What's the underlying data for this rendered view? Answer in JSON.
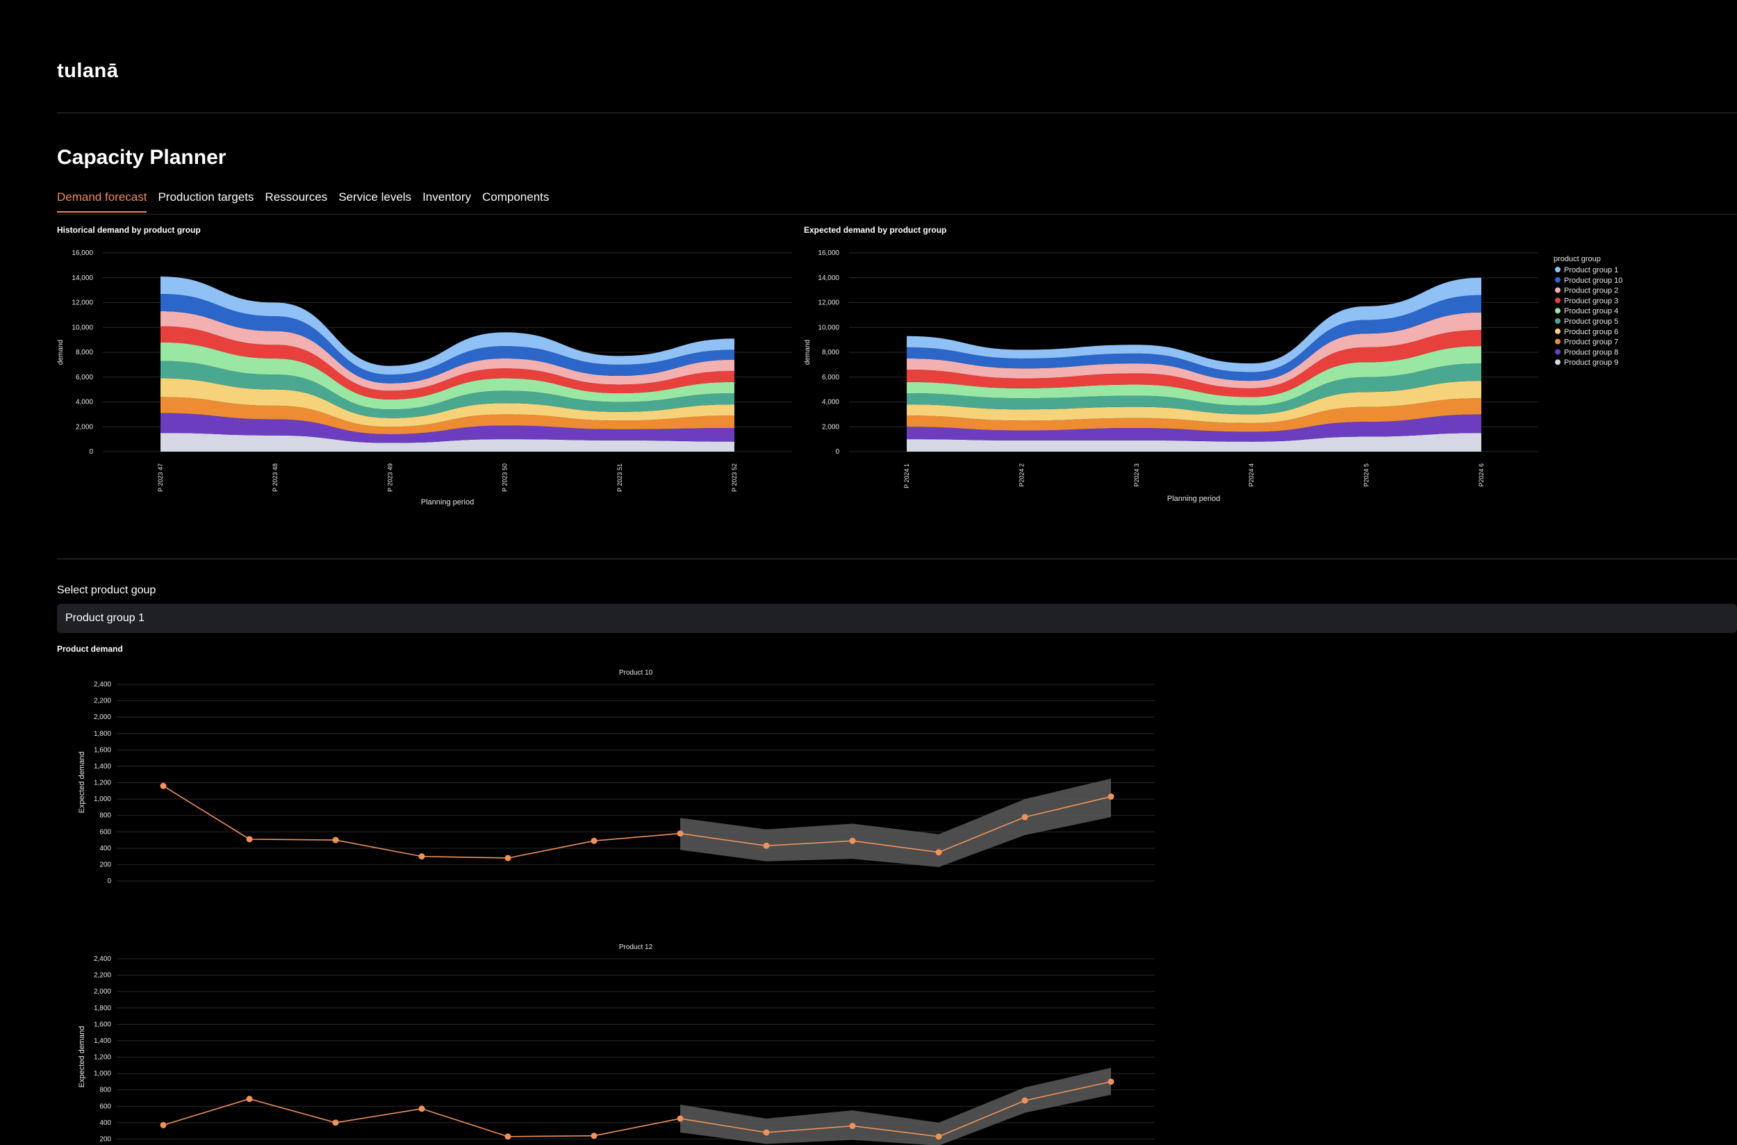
{
  "app": {
    "logo": "tulanā"
  },
  "page": {
    "title": "Capacity Planner"
  },
  "tabs": [
    {
      "label": "Demand forecast",
      "active": true
    },
    {
      "label": "Production targets",
      "active": false
    },
    {
      "label": "Ressources",
      "active": false
    },
    {
      "label": "Service levels",
      "active": false
    },
    {
      "label": "Inventory",
      "active": false
    },
    {
      "label": "Components",
      "active": false
    }
  ],
  "sections": {
    "historical_title": "Historical demand by product group",
    "expected_title": "Expected demand by product group",
    "select_label": "Select product goup",
    "selected_group": "Product group 1",
    "product_demand_title": "Product demand"
  },
  "legend": {
    "title": "product group",
    "items": [
      {
        "label": "Product group 1",
        "color": "#8fc1f7"
      },
      {
        "label": "Product group 10",
        "color": "#2c66c9"
      },
      {
        "label": "Product group 2",
        "color": "#f3b0b0"
      },
      {
        "label": "Product group 3",
        "color": "#e8403c"
      },
      {
        "label": "Product group 4",
        "color": "#9ae6a3"
      },
      {
        "label": "Product group 5",
        "color": "#4aa890"
      },
      {
        "label": "Product group 6",
        "color": "#f6d37a"
      },
      {
        "label": "Product group 7",
        "color": "#ee8c34"
      },
      {
        "label": "Product group 8",
        "color": "#6c3ebf"
      },
      {
        "label": "Product group 9",
        "color": "#d6d8e6"
      }
    ]
  },
  "chart_data": [
    {
      "type": "area",
      "title": "",
      "xlabel": "Planning period",
      "ylabel": "demand",
      "ylim": [
        0,
        16000
      ],
      "yticks": [
        0,
        2000,
        4000,
        6000,
        8000,
        10000,
        12000,
        14000,
        16000
      ],
      "categories": [
        "P 2023 47",
        "P 2023 48",
        "P 2023 49",
        "P 2023 50",
        "P 2023 51",
        "P 2023 52"
      ],
      "series": [
        {
          "name": "Product group 9",
          "values": [
            1500,
            1300,
            700,
            1000,
            900,
            800
          ]
        },
        {
          "name": "Product group 8",
          "values": [
            1600,
            1300,
            700,
            1100,
            900,
            1100
          ]
        },
        {
          "name": "Product group 7",
          "values": [
            1300,
            1100,
            600,
            900,
            700,
            1000
          ]
        },
        {
          "name": "Product group 6",
          "values": [
            1500,
            1300,
            700,
            900,
            700,
            900
          ]
        },
        {
          "name": "Product group 5",
          "values": [
            1400,
            1200,
            700,
            1000,
            800,
            900
          ]
        },
        {
          "name": "Product group 4",
          "values": [
            1500,
            1300,
            800,
            1000,
            700,
            900
          ]
        },
        {
          "name": "Product group 3",
          "values": [
            1300,
            1100,
            700,
            800,
            700,
            900
          ]
        },
        {
          "name": "Product group 2",
          "values": [
            1200,
            1100,
            600,
            800,
            700,
            900
          ]
        },
        {
          "name": "Product group 10",
          "values": [
            1400,
            1200,
            700,
            1000,
            900,
            800
          ]
        },
        {
          "name": "Product group 1",
          "values": [
            1400,
            1100,
            700,
            1100,
            700,
            900
          ]
        }
      ]
    },
    {
      "type": "area",
      "title": "",
      "xlabel": "Planning period",
      "ylabel": "demand",
      "ylim": [
        0,
        16000
      ],
      "yticks": [
        0,
        2000,
        4000,
        6000,
        8000,
        10000,
        12000,
        14000,
        16000
      ],
      "categories": [
        "P 2024 1",
        "P2024 2",
        "P2024 3",
        "P2024 4",
        "P2024 5",
        "P2024 6"
      ],
      "series": [
        {
          "name": "Product group 9",
          "values": [
            1000,
            900,
            900,
            800,
            1200,
            1500
          ]
        },
        {
          "name": "Product group 8",
          "values": [
            1000,
            800,
            1000,
            800,
            1200,
            1500
          ]
        },
        {
          "name": "Product group 7",
          "values": [
            900,
            800,
            800,
            700,
            1200,
            1300
          ]
        },
        {
          "name": "Product group 6",
          "values": [
            900,
            900,
            900,
            700,
            1200,
            1400
          ]
        },
        {
          "name": "Product group 5",
          "values": [
            900,
            900,
            900,
            700,
            1200,
            1400
          ]
        },
        {
          "name": "Product group 4",
          "values": [
            900,
            800,
            900,
            700,
            1200,
            1400
          ]
        },
        {
          "name": "Product group 3",
          "values": [
            1000,
            800,
            900,
            700,
            1200,
            1300
          ]
        },
        {
          "name": "Product group 2",
          "values": [
            900,
            800,
            800,
            600,
            1100,
            1400
          ]
        },
        {
          "name": "Product group 10",
          "values": [
            900,
            800,
            800,
            700,
            1100,
            1400
          ]
        },
        {
          "name": "Product group 1",
          "values": [
            900,
            700,
            700,
            700,
            1100,
            1400
          ]
        }
      ]
    },
    {
      "type": "line",
      "title": "Product 10",
      "xlabel": "",
      "ylabel": "Expected demand",
      "ylim": [
        0,
        2400
      ],
      "yticks": [
        0,
        200,
        400,
        600,
        800,
        1000,
        1200,
        1400,
        1600,
        1800,
        2000,
        2200,
        2400
      ],
      "x": [
        0,
        1,
        2,
        3,
        4,
        5,
        6,
        7,
        8,
        9,
        10,
        11
      ],
      "values": [
        1160,
        510,
        500,
        300,
        280,
        490,
        580,
        430,
        490,
        350,
        780,
        1030
      ],
      "band": {
        "x": [
          6,
          7,
          8,
          9,
          10,
          11
        ],
        "lower": [
          380,
          240,
          270,
          170,
          560,
          780
        ],
        "upper": [
          770,
          630,
          700,
          570,
          1000,
          1250
        ]
      }
    },
    {
      "type": "line",
      "title": "Product 12",
      "xlabel": "",
      "ylabel": "Expected demand",
      "ylim": [
        0,
        2400
      ],
      "yticks": [
        200,
        400,
        600,
        800,
        1000,
        1200,
        1400,
        1600,
        1800,
        2000,
        2200,
        2400
      ],
      "x": [
        0,
        1,
        2,
        3,
        4,
        5,
        6,
        7,
        8,
        9,
        10,
        11
      ],
      "values": [
        370,
        690,
        400,
        570,
        230,
        240,
        450,
        280,
        360,
        230,
        670,
        900
      ],
      "band": {
        "x": [
          6,
          7,
          8,
          9,
          10,
          11
        ],
        "lower": [
          280,
          140,
          190,
          120,
          520,
          740
        ],
        "upper": [
          620,
          450,
          550,
          400,
          830,
          1070
        ]
      }
    }
  ]
}
